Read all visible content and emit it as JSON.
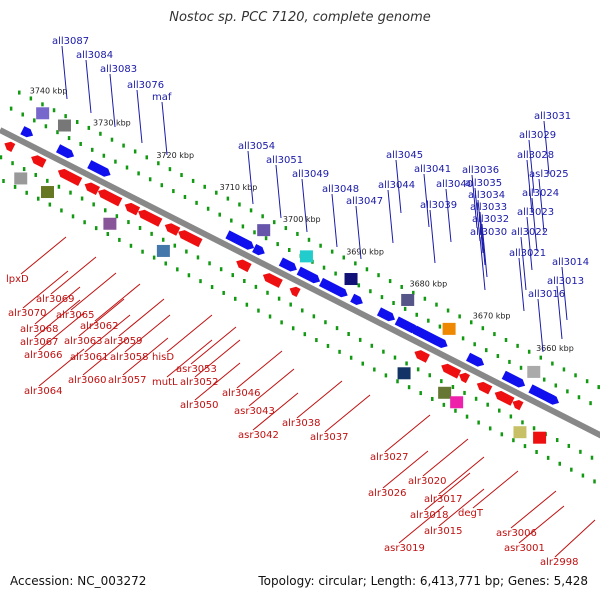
{
  "title": "Nostoc sp. PCC 7120, complete genome",
  "footer": {
    "accession": "Accession: NC_003272",
    "summary": "Topology: circular; Length: 6,413,771 bp; Genes: 5,428"
  },
  "colors": {
    "forward": "#1010ee",
    "reverse": "#ee1010",
    "label_forward": "#1a1aa8",
    "label_reverse": "#c01010",
    "dots": "#119911",
    "backbone": "#888888"
  },
  "ticks": [
    "3740 kbp",
    "3730 kbp",
    "3720 kbp",
    "3710 kbp",
    "3700 kbp",
    "3690 kbp",
    "3680 kbp",
    "3670 kbp",
    "3660 kbp"
  ],
  "labels_top": [
    "all3087",
    "all3084",
    "all3083",
    "all3076",
    "maf",
    "all3054",
    "all3051",
    "all3049",
    "all3048",
    "all3047",
    "all3045",
    "all3044",
    "all3041",
    "all3040",
    "all3039",
    "all3036",
    "all3035",
    "all3034",
    "all3033",
    "all3032",
    "all3030",
    "all3031",
    "all3029",
    "all3028",
    "asl3025",
    "all3024",
    "all3023",
    "all3022",
    "all3021",
    "all3014",
    "all3013",
    "all3016"
  ],
  "labels_bottom": [
    "lpxD",
    "alr3069",
    "alr3070",
    "alr3065",
    "alr3068",
    "alr3062",
    "alr3067",
    "alr3063",
    "alr3059",
    "alr3066",
    "alr3061",
    "alr3058",
    "hisD",
    "alr3064",
    "alr3060",
    "alr3057",
    "mutL",
    "asr3053",
    "alr3052",
    "alr3046",
    "alr3050",
    "asr3043",
    "alr3038",
    "asr3042",
    "alr3037",
    "alr3027",
    "alr3020",
    "alr3026",
    "alr3017",
    "alr3018",
    "degT",
    "alr3015",
    "asr3019",
    "asr3006",
    "asr3001",
    "alr2998"
  ]
}
